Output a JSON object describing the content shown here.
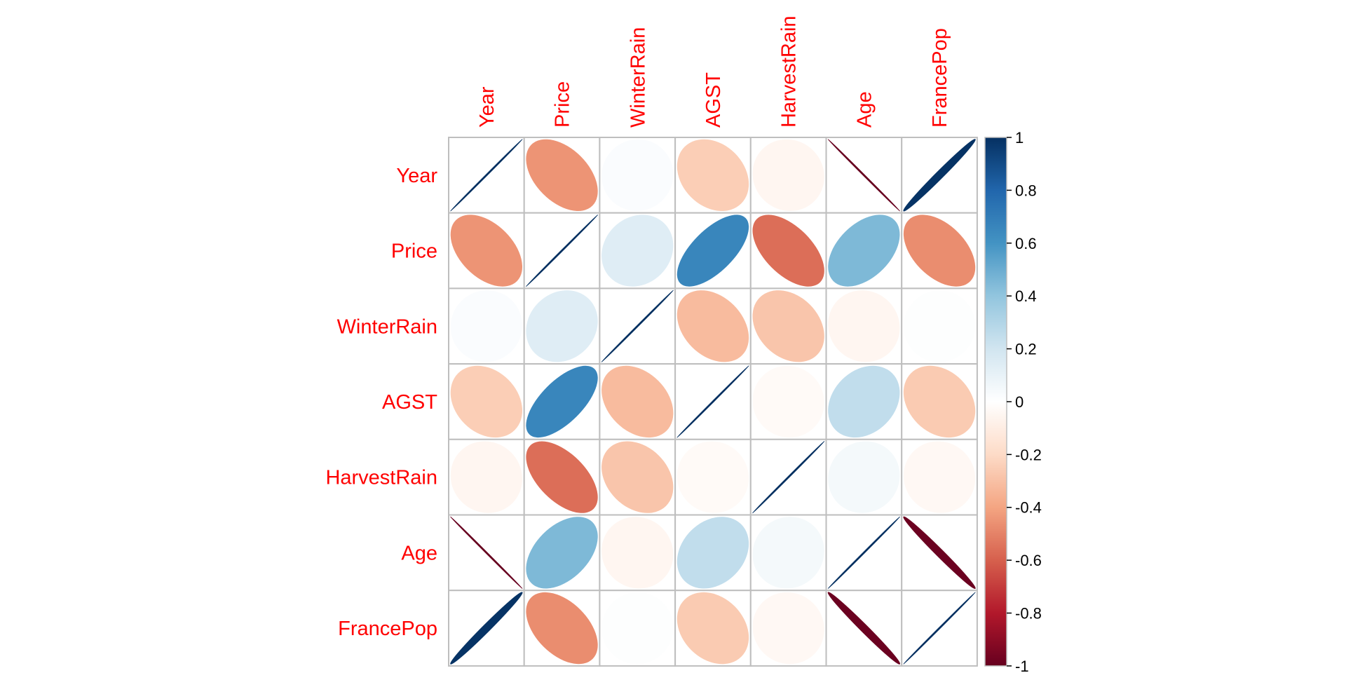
{
  "chart_data": {
    "type": "heatmap",
    "variables": [
      "Year",
      "Price",
      "WinterRain",
      "AGST",
      "HarvestRain",
      "Age",
      "FrancePop"
    ],
    "matrix": [
      [
        1.0,
        -0.45,
        0.02,
        -0.25,
        -0.05,
        -1.0,
        0.99
      ],
      [
        -0.45,
        1.0,
        0.14,
        0.66,
        -0.56,
        0.45,
        -0.47
      ],
      [
        0.02,
        0.14,
        1.0,
        -0.32,
        -0.28,
        -0.05,
        0.01
      ],
      [
        -0.25,
        0.66,
        -0.32,
        1.0,
        -0.03,
        0.25,
        -0.26
      ],
      [
        -0.05,
        -0.56,
        -0.28,
        -0.03,
        1.0,
        0.05,
        -0.04
      ],
      [
        -1.0,
        0.45,
        -0.05,
        0.25,
        0.05,
        1.0,
        -0.99
      ],
      [
        0.99,
        -0.47,
        0.01,
        -0.26,
        -0.04,
        -0.99,
        1.0
      ]
    ],
    "colorbar": {
      "ticks": [
        "1",
        "0.8",
        "0.6",
        "0.4",
        "0.2",
        "0",
        "-0.2",
        "-0.4",
        "-0.6",
        "-0.8",
        "-1"
      ],
      "range": [
        -1,
        1
      ],
      "colors": {
        "-1": "#67001f",
        "-0.8": "#b2182b",
        "-0.6": "#d6604d",
        "-0.4": "#f4a582",
        "-0.2": "#fddbc7",
        "0": "#ffffff",
        "0.2": "#d1e5f0",
        "0.4": "#92c5de",
        "0.6": "#4393c3",
        "0.8": "#2166ac",
        "1": "#053061"
      }
    },
    "label_color": "#ff0000",
    "grid_color": "#bebebe",
    "method": "ellipse"
  }
}
